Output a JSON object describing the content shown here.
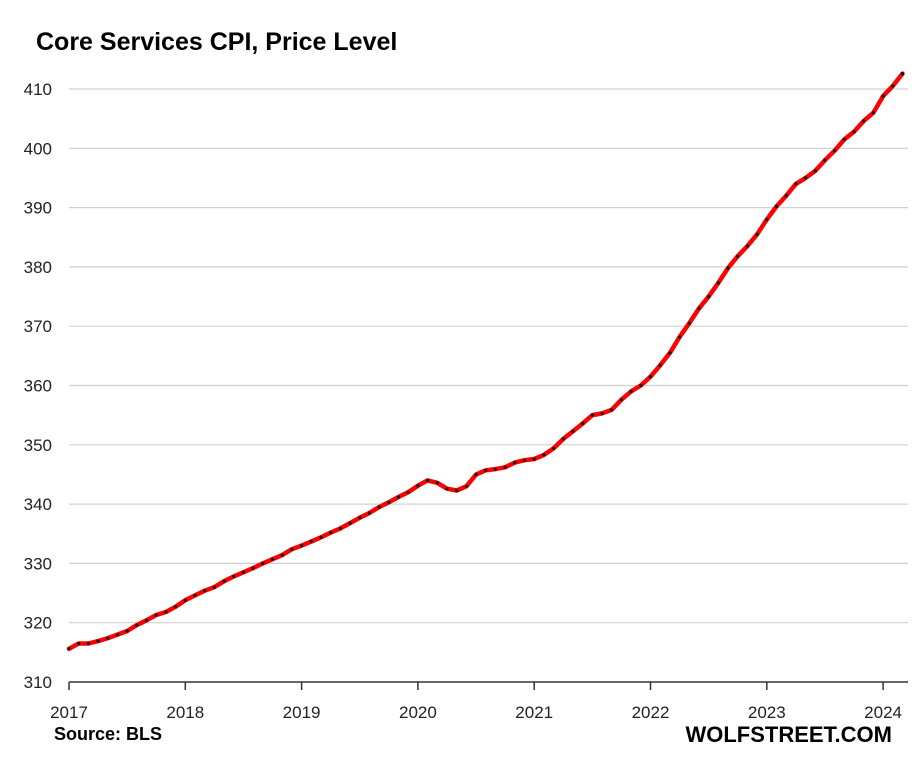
{
  "chart_data": {
    "type": "line",
    "title": "Core Services CPI, Price Level",
    "source": "Source: BLS",
    "brand": "WOLFSTREET.COM",
    "xlabel": "",
    "ylabel": "",
    "ylim": [
      310,
      410
    ],
    "yticks": [
      310,
      320,
      330,
      340,
      350,
      360,
      370,
      380,
      390,
      400,
      410
    ],
    "xticks": [
      "2017",
      "2018",
      "2019",
      "2020",
      "2021",
      "2022",
      "2023",
      "2024"
    ],
    "x_start": "2017-01",
    "grid": true,
    "colors": {
      "line": "#ff0000",
      "dots": "#111111",
      "grid": "#d0d0d0",
      "axis": "#333333"
    },
    "series": [
      {
        "values": [
          315.6,
          316.5,
          316.5,
          316.9,
          317.4,
          318.0,
          318.6,
          319.6,
          320.4,
          321.3,
          321.8,
          322.7,
          323.8,
          324.6,
          325.4,
          326.0,
          327.0,
          327.8,
          328.5,
          329.2,
          330.0,
          330.7,
          331.4,
          332.4,
          333.0,
          333.7,
          334.4,
          335.2,
          335.9,
          336.8,
          337.7,
          338.5,
          339.5,
          340.3,
          341.2,
          342.0,
          343.1,
          344.0,
          343.6,
          342.6,
          342.3,
          343.0,
          345.0,
          345.7,
          345.9,
          346.2,
          347.0,
          347.4,
          347.6,
          348.3,
          349.4,
          351.0,
          352.3,
          353.6,
          355.0,
          355.3,
          355.9,
          357.6,
          359.0,
          360.0,
          361.5,
          363.4,
          365.5,
          368.2,
          370.5,
          373.0,
          375.0,
          377.3,
          379.8,
          381.8,
          383.5,
          385.5,
          388.0,
          390.2,
          392.0,
          394.0,
          395.0,
          396.2,
          398.0,
          399.6,
          401.5,
          402.8,
          404.6,
          406.0,
          408.8,
          410.5,
          412.6
        ]
      }
    ]
  }
}
